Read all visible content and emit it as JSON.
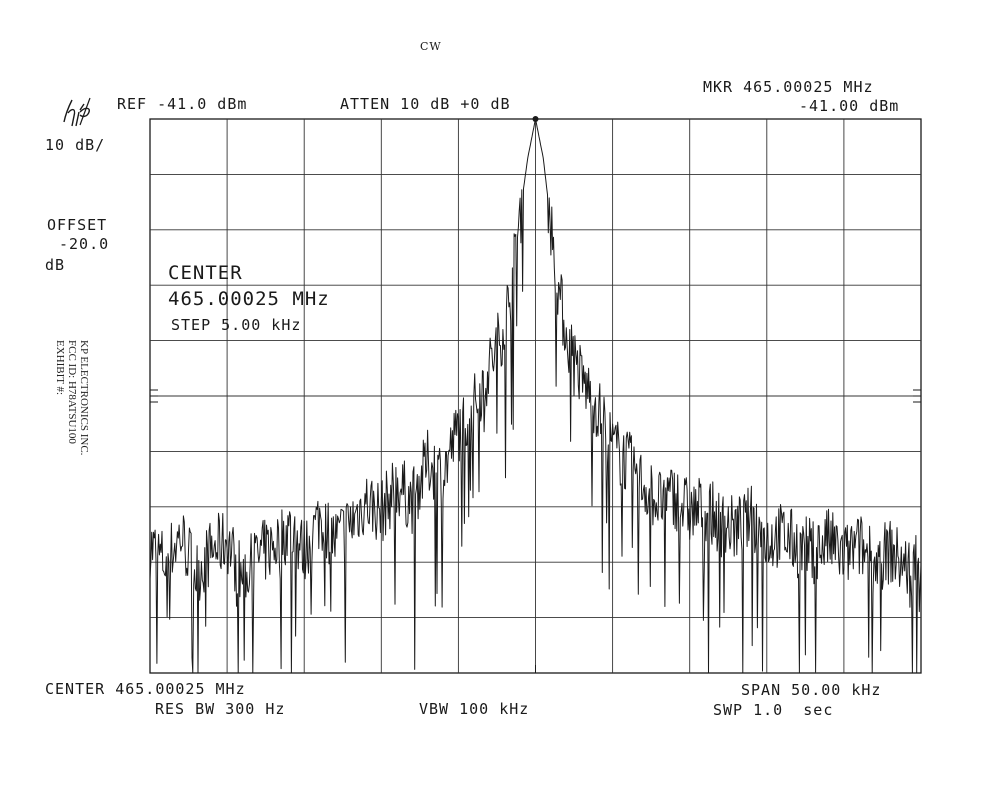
{
  "header": {
    "mode": "CW"
  },
  "instrument": {
    "logo_text": "hp"
  },
  "top_bar": {
    "ref": "REF -41.0 dBm",
    "atten": "ATTEN 10 dB +0 dB",
    "marker_freq": "MKR 465.00025 MHz",
    "marker_level": "-41.00 dBm"
  },
  "left_panel": {
    "scale": "10 dB/",
    "offset_label": "OFFSET",
    "offset_value": "-20.0",
    "offset_unit": "dB"
  },
  "overlay": {
    "center_label": "CENTER",
    "center_value": "465.00025 MHz",
    "step": "STEP 5.00 kHz"
  },
  "bottom_bar": {
    "center": "CENTER 465.00025 MHz",
    "span": "SPAN 50.00 kHz",
    "res_bw": "RES BW 300 Hz",
    "vbw": "VBW 100 kHz",
    "swp": "SWP 1.0  sec"
  },
  "exhibit_stamp": {
    "line1": "KP ELECTRONICS INC.",
    "line2": "FCC ID: H78ATSU100",
    "line3": "EXHIBIT #:"
  },
  "chart_data": {
    "type": "line",
    "title": "",
    "xlabel": "",
    "ylabel": "",
    "x_unit": "kHz offset from center",
    "y_unit": "dBm",
    "xlim": [
      -25,
      25
    ],
    "ylim": [
      -141,
      -41
    ],
    "grid": true,
    "divisions_x": 10,
    "divisions_y": 10,
    "color": "#1a1a1a",
    "series": [
      {
        "x": [
          -25,
          -24,
          -23,
          -22,
          -21,
          -20,
          -19,
          -18,
          -17,
          -16,
          -15,
          -14,
          -13,
          -12,
          -11,
          -10,
          -9,
          -8,
          -7,
          -6,
          -5,
          -4,
          -3,
          -2,
          -1.5,
          -1,
          -0.5,
          0,
          0.5,
          1,
          1.5,
          2,
          3,
          4,
          5,
          6,
          7,
          8,
          9,
          10,
          11,
          12,
          13,
          14,
          15,
          16,
          17,
          18,
          19,
          20,
          21,
          22,
          23,
          24,
          25
        ],
        "y": [
          -118,
          -121,
          -116,
          -123,
          -119,
          -117,
          -124,
          -120,
          -118,
          -115,
          -119,
          -113,
          -117,
          -114,
          -110,
          -112,
          -107,
          -110,
          -103,
          -105,
          -97,
          -93,
          -86,
          -78,
          -70,
          -58,
          -48,
          -41,
          -48,
          -60,
          -72,
          -80,
          -88,
          -93,
          -100,
          -103,
          -107,
          -110,
          -109,
          -112,
          -111,
          -114,
          -115,
          -113,
          -117,
          -116,
          -118,
          -119,
          -117,
          -120,
          -118,
          -121,
          -119,
          -122,
          -120
        ]
      }
    ],
    "marker": {
      "x": 0,
      "y": -41
    }
  }
}
